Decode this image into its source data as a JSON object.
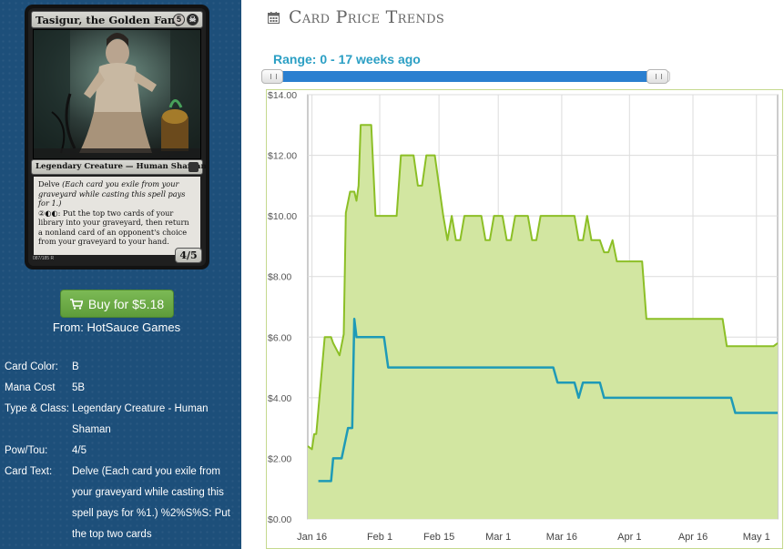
{
  "card": {
    "name": "Tasigur, the Golden Fang",
    "mana_symbols": [
      "5",
      "B"
    ],
    "type_line": "Legendary Creature — Human Shaman",
    "rules_line1_keyword": "Delve",
    "rules_line1_reminder": "(Each card you exile from your graveyard while casting this spell pays for 1.)",
    "rules_line2": ": Put the top two cards of your library into your graveyard, then return a nonland card of an opponent's choice from your graveyard to your hand.",
    "power_toughness": "4/5",
    "collector_number": "087/185 R"
  },
  "buy": {
    "label": "Buy for $5.18",
    "icon": "cart-icon",
    "from_text": "From: HotSauce Games"
  },
  "attributes": [
    {
      "label": "Card Color:",
      "value": "B"
    },
    {
      "label": "Mana Cost",
      "value": "5B"
    },
    {
      "label": "Type & Class:",
      "value": "Legendary Creature - Human Shaman"
    },
    {
      "label": "Pow/Tou:",
      "value": "4/5"
    },
    {
      "label": "Card Text:",
      "value": "Delve (Each card you exile from your graveyard while casting this spell pays for %1.) %2%S%S: Put the top two cards"
    }
  ],
  "header": {
    "icon": "calendar-icon",
    "title": "Card Price Trends"
  },
  "range": {
    "label": "Range: 0 - 17 weeks ago",
    "min": 0,
    "max": 17
  },
  "colors": {
    "panel_bg": "#1d4f7a",
    "button_green": "#6aaa45",
    "range_text": "#2b9fc4",
    "slider_range": "#2a7fd0",
    "area_fill": "#d2e6a1",
    "area_line": "#8cbf26",
    "line_blue": "#1e9ab7"
  },
  "chart_data": {
    "type": "area",
    "y_ticks": [
      "$0.00",
      "$2.00",
      "$4.00",
      "$6.00",
      "$8.00",
      "$10.00",
      "$12.00",
      "$14.00"
    ],
    "ylim": [
      0,
      14
    ],
    "x_ticks": [
      {
        "label": "Jan 16",
        "day": 0
      },
      {
        "label": "Feb 1",
        "day": 16
      },
      {
        "label": "Feb 15",
        "day": 30
      },
      {
        "label": "Mar 1",
        "day": 44
      },
      {
        "label": "Mar 16",
        "day": 59
      },
      {
        "label": "Apr 1",
        "day": 75
      },
      {
        "label": "Apr 16",
        "day": 90
      },
      {
        "label": "May 1",
        "day": 105
      }
    ],
    "xlim": [
      -1,
      110
    ],
    "grid": true,
    "series": [
      {
        "style": "area",
        "color": "#8cbf26",
        "points": [
          [
            -1,
            2.4
          ],
          [
            0,
            2.3
          ],
          [
            0.5,
            2.8
          ],
          [
            1,
            2.8
          ],
          [
            3,
            6.0
          ],
          [
            4.5,
            6.0
          ],
          [
            5,
            5.8
          ],
          [
            6.5,
            5.4
          ],
          [
            7.5,
            6.1
          ],
          [
            8,
            10.1
          ],
          [
            9,
            10.8
          ],
          [
            10,
            10.8
          ],
          [
            10.5,
            10.5
          ],
          [
            11,
            11.0
          ],
          [
            11.5,
            13.0
          ],
          [
            14,
            13.0
          ],
          [
            15,
            10.0
          ],
          [
            19,
            10.0
          ],
          [
            20,
            10.0
          ],
          [
            21,
            12.0
          ],
          [
            24,
            12.0
          ],
          [
            25,
            11.0
          ],
          [
            26,
            11.0
          ],
          [
            27,
            12.0
          ],
          [
            29,
            12.0
          ],
          [
            31,
            10.0
          ],
          [
            32,
            9.2
          ],
          [
            33,
            10.0
          ],
          [
            34,
            9.2
          ],
          [
            35,
            9.2
          ],
          [
            36,
            10.0
          ],
          [
            40,
            10.0
          ],
          [
            41,
            9.2
          ],
          [
            42,
            9.2
          ],
          [
            43,
            10.0
          ],
          [
            45,
            10.0
          ],
          [
            46,
            9.2
          ],
          [
            47,
            9.2
          ],
          [
            48,
            10.0
          ],
          [
            51,
            10.0
          ],
          [
            52,
            9.2
          ],
          [
            53,
            9.2
          ],
          [
            54,
            10.0
          ],
          [
            57,
            10.0
          ],
          [
            58,
            10.0
          ],
          [
            59,
            10.0
          ],
          [
            62,
            10.0
          ],
          [
            63,
            9.2
          ],
          [
            64,
            9.2
          ],
          [
            65,
            10.0
          ],
          [
            66,
            9.2
          ],
          [
            68,
            9.2
          ],
          [
            69,
            8.8
          ],
          [
            70,
            8.8
          ],
          [
            71,
            9.2
          ],
          [
            72,
            8.5
          ],
          [
            78,
            8.5
          ],
          [
            79,
            6.6
          ],
          [
            97,
            6.6
          ],
          [
            98,
            5.7
          ],
          [
            109,
            5.7
          ],
          [
            110,
            5.8
          ]
        ]
      },
      {
        "style": "line",
        "color": "#1e9ab7",
        "points": [
          [
            1.5,
            1.25
          ],
          [
            4.5,
            1.25
          ],
          [
            5,
            2.0
          ],
          [
            7,
            2.0
          ],
          [
            8.5,
            3.0
          ],
          [
            9.5,
            3.0
          ],
          [
            10,
            6.6
          ],
          [
            10.5,
            6.0
          ],
          [
            17,
            6.0
          ],
          [
            18,
            5.0
          ],
          [
            57,
            5.0
          ],
          [
            58,
            4.5
          ],
          [
            62,
            4.5
          ],
          [
            63,
            4.0
          ],
          [
            64,
            4.5
          ],
          [
            68,
            4.5
          ],
          [
            69,
            4.0
          ],
          [
            99,
            4.0
          ],
          [
            100,
            3.5
          ],
          [
            110,
            3.5
          ]
        ]
      }
    ]
  }
}
